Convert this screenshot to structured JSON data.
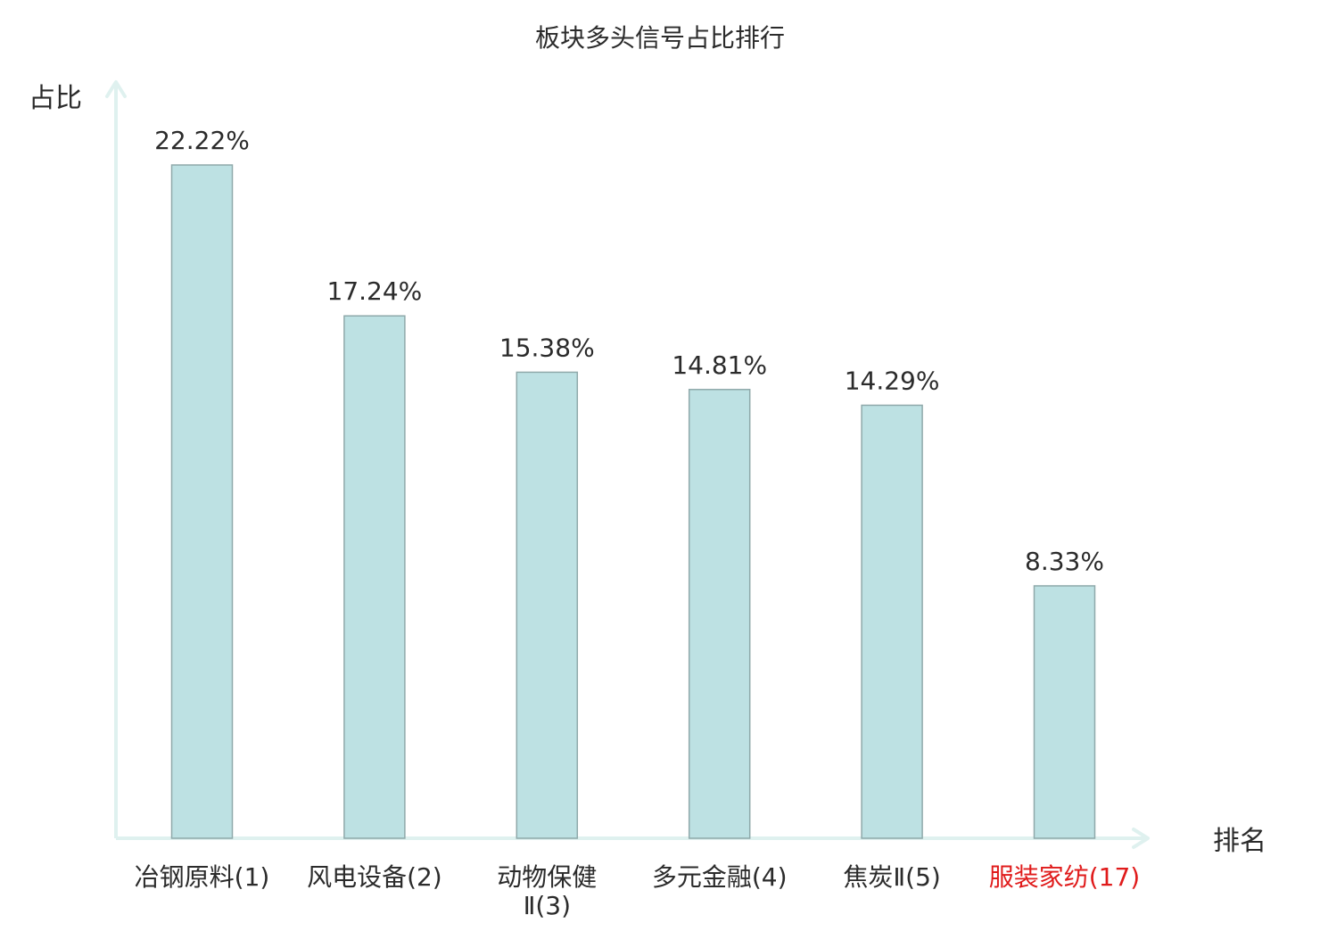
{
  "colors": {
    "bar_fill": "#bde1e3",
    "bar_stroke": "#8fa9aa",
    "axis": "#dff1ef",
    "text": "#2b2b2b",
    "highlight": "#e01b1b"
  },
  "chart_data": {
    "type": "bar",
    "title": "板块多头信号占比排行",
    "xlabel": "排名",
    "ylabel": "占比",
    "categories": [
      [
        "冶钢原料(1)"
      ],
      [
        "风电设备(2)"
      ],
      [
        "动物保健",
        "Ⅱ(3)"
      ],
      [
        "多元金融(4)"
      ],
      [
        "焦炭Ⅱ(5)"
      ],
      [
        "服装家纺(17)"
      ]
    ],
    "values": [
      22.22,
      17.24,
      15.38,
      14.81,
      14.29,
      8.33
    ],
    "value_labels": [
      "22.22%",
      "17.24%",
      "15.38%",
      "14.81%",
      "14.29%",
      "8.33%"
    ],
    "highlight_index": 5,
    "ylim": [
      0,
      25
    ],
    "grid": false,
    "legend": "none"
  }
}
